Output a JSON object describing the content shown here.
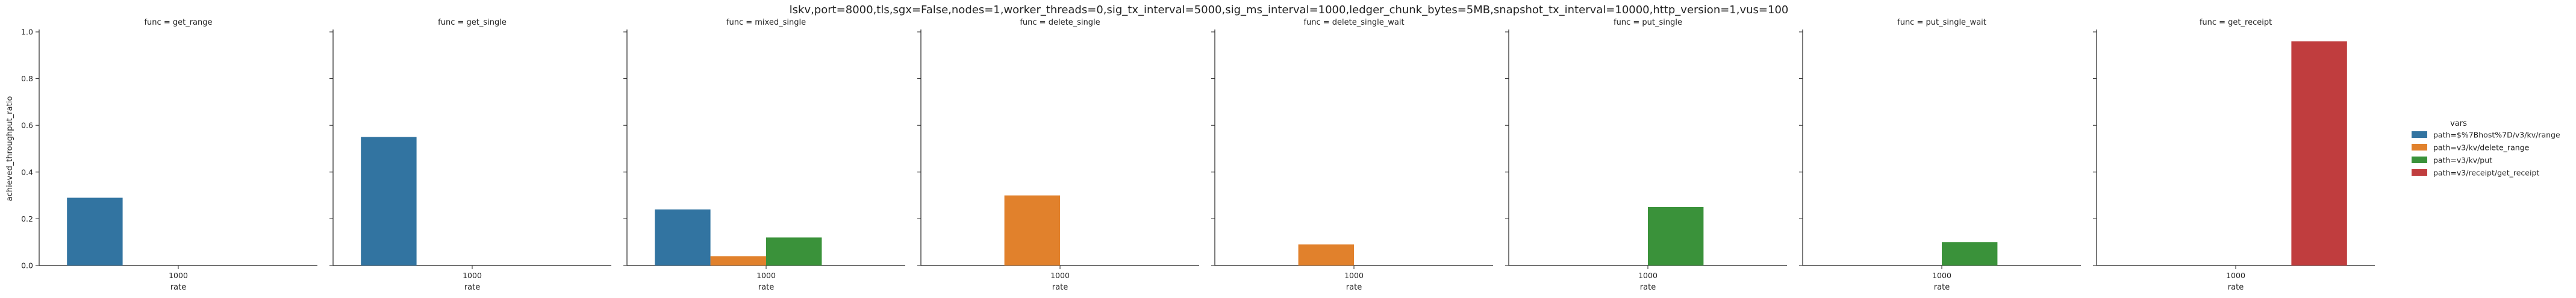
{
  "chart_data": {
    "type": "bar",
    "suptitle": "lskv,port=8000,tls,sgx=False,nodes=1,worker_threads=0,sig_tx_interval=5000,sig_ms_interval=1000,ledger_chunk_bytes=5MB,snapshot_tx_interval=10000,http_version=1,vus=100",
    "xlabel": "rate",
    "ylabel": "achieved_throughput_ratio",
    "ylim": [
      0,
      1.0
    ],
    "yticks": [
      "0.0",
      "0.2",
      "0.4",
      "0.6",
      "0.8",
      "1.0"
    ],
    "categories": [
      "1000"
    ],
    "legend": {
      "title": "vars",
      "placement": "right",
      "entries": [
        {
          "label": "path=$%7Bhost%7D/v3/kv/range",
          "color": "#3274a1"
        },
        {
          "label": "path=v3/kv/delete_range",
          "color": "#e1812c"
        },
        {
          "label": "path=v3/kv/put",
          "color": "#3a923a"
        },
        {
          "label": "path=v3/receipt/get_receipt",
          "color": "#c03d3e"
        }
      ]
    },
    "facets": [
      {
        "title": "func = get_range",
        "values": [
          0.29,
          0,
          0,
          0
        ]
      },
      {
        "title": "func = get_single",
        "values": [
          0.55,
          0,
          0,
          0
        ]
      },
      {
        "title": "func = mixed_single",
        "values": [
          0.24,
          0.04,
          0.12,
          0
        ]
      },
      {
        "title": "func = delete_single",
        "values": [
          0,
          0.3,
          0,
          0
        ]
      },
      {
        "title": "func = delete_single_wait",
        "values": [
          0,
          0.09,
          0,
          0
        ]
      },
      {
        "title": "func = put_single",
        "values": [
          0,
          0,
          0.25,
          0
        ]
      },
      {
        "title": "func = put_single_wait",
        "values": [
          0,
          0,
          0.1,
          0
        ]
      },
      {
        "title": "func = get_receipt",
        "values": [
          0,
          0,
          0,
          0.96
        ]
      }
    ]
  }
}
